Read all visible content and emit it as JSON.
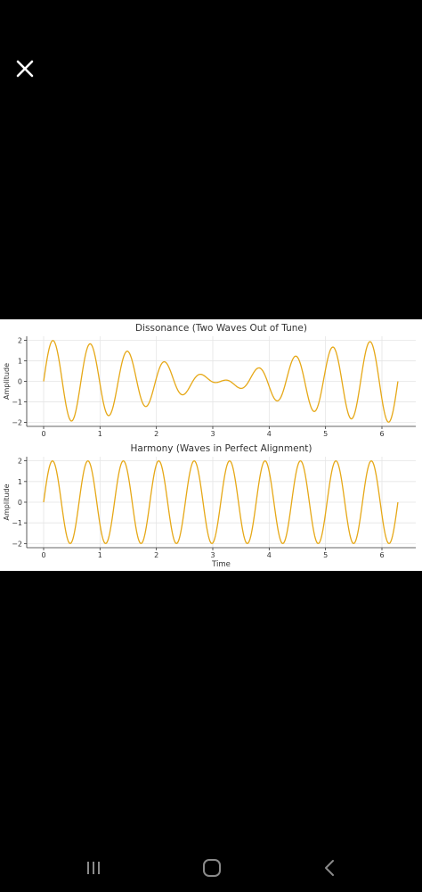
{
  "viewer": {
    "close_icon": "close-icon"
  },
  "navigation": {
    "recent_icon": "recent-apps-icon",
    "home_icon": "home-icon",
    "back_icon": "back-icon"
  },
  "colors": {
    "wave": "#e6a817",
    "background": "#000000",
    "plot_bg": "#ffffff",
    "grid": "#e5e5e5"
  },
  "chart_data": [
    {
      "type": "line",
      "title": "Dissonance (Two Waves Out of Tune)",
      "xlabel": "",
      "ylabel": "Amplitude",
      "xlim": [
        -0.3,
        6.6
      ],
      "ylim": [
        -2.2,
        2.2
      ],
      "xticks": [
        0,
        1,
        2,
        3,
        4,
        5,
        6
      ],
      "yticks": [
        -2,
        -1,
        0,
        1,
        2
      ],
      "grid": true,
      "series": [
        {
          "function": "sin(10t) + sin(9t)",
          "x_range": [
            0,
            6.283
          ],
          "samples": 600,
          "color": "#e6a817"
        }
      ]
    },
    {
      "type": "line",
      "title": "Harmony (Waves in Perfect Alignment)",
      "xlabel": "Time",
      "ylabel": "Amplitude",
      "xlim": [
        -0.3,
        6.6
      ],
      "ylim": [
        -2.2,
        2.2
      ],
      "xticks": [
        0,
        1,
        2,
        3,
        4,
        5,
        6
      ],
      "yticks": [
        -2,
        -1,
        0,
        1,
        2
      ],
      "grid": true,
      "series": [
        {
          "function": "2 sin(10t)",
          "x_range": [
            0,
            6.283
          ],
          "samples": 600,
          "color": "#e6a817"
        }
      ]
    }
  ]
}
